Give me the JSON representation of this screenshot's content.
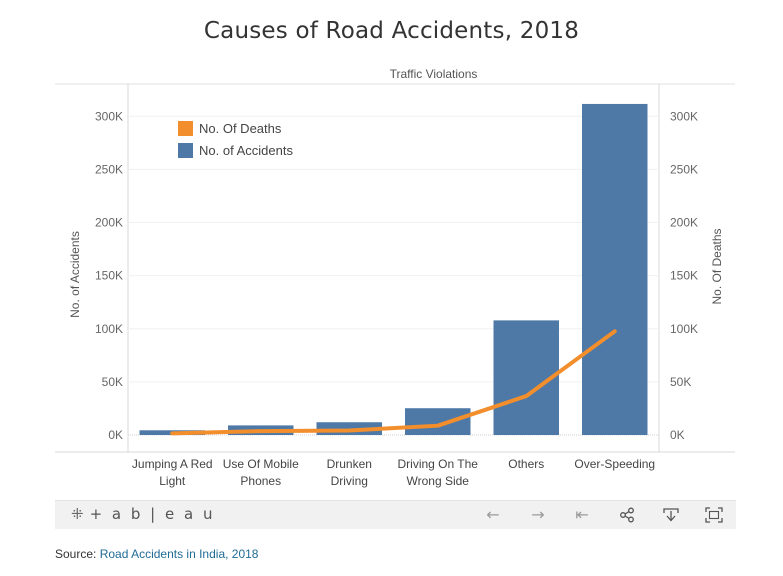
{
  "title": "Causes of Road Accidents, 2018",
  "chart_data": {
    "type": "bar+line",
    "title": "Causes of Road Accidents, 2018",
    "column_header": "Traffic Violations",
    "categories": [
      [
        "Jumping A Red",
        "Light"
      ],
      [
        "Use Of Mobile",
        "Phones"
      ],
      [
        "Drunken",
        "Driving"
      ],
      [
        "Driving On The",
        "Wrong Side"
      ],
      [
        "Others"
      ],
      [
        "Over-Speeding"
      ]
    ],
    "series": [
      {
        "name": "No. of Accidents",
        "type": "bar",
        "axis": "left",
        "color": "#4e79a7",
        "values": [
          4443,
          9039,
          12018,
          25210,
          107880,
          311583
        ]
      },
      {
        "name": "No. Of Deaths",
        "type": "line",
        "axis": "right",
        "color": "#f28e2b",
        "values": [
          1545,
          3689,
          4188,
          8764,
          36630,
          97588
        ]
      }
    ],
    "y_left": {
      "label": "No. of Accidents",
      "min": 0,
      "max": 320000,
      "ticks": [
        0,
        50000,
        100000,
        150000,
        200000,
        250000,
        300000
      ],
      "tick_labels": [
        "0K",
        "50K",
        "100K",
        "150K",
        "200K",
        "250K",
        "300K"
      ]
    },
    "y_right": {
      "label": "No. Of Deaths",
      "min": 0,
      "max": 320000,
      "ticks": [
        0,
        50000,
        100000,
        150000,
        200000,
        250000,
        300000
      ],
      "tick_labels": [
        "0K",
        "50K",
        "100K",
        "150K",
        "200K",
        "250K",
        "300K"
      ]
    },
    "legend": [
      {
        "label": "No. Of Deaths",
        "color": "#f28e2b"
      },
      {
        "label": "No. of Accidents",
        "color": "#4e79a7"
      }
    ],
    "legend_position": "top-left",
    "grid": true
  },
  "toolbar": {
    "logo": "+ a b | e a u",
    "logo_mark": "⁜",
    "icons": [
      {
        "name": "undo-icon",
        "glyph": "←",
        "enabled": false
      },
      {
        "name": "redo-icon",
        "glyph": "→",
        "enabled": false
      },
      {
        "name": "revert-icon",
        "glyph": "⇤",
        "enabled": false
      },
      {
        "name": "share-icon",
        "glyph": "⋖",
        "enabled": true
      },
      {
        "name": "download-icon",
        "glyph": "⤓",
        "enabled": true
      },
      {
        "name": "fullscreen-icon",
        "glyph": "⛶",
        "enabled": true
      }
    ]
  },
  "source": {
    "prefix": "Source: ",
    "link_text": "Road Accidents in India, 2018"
  }
}
